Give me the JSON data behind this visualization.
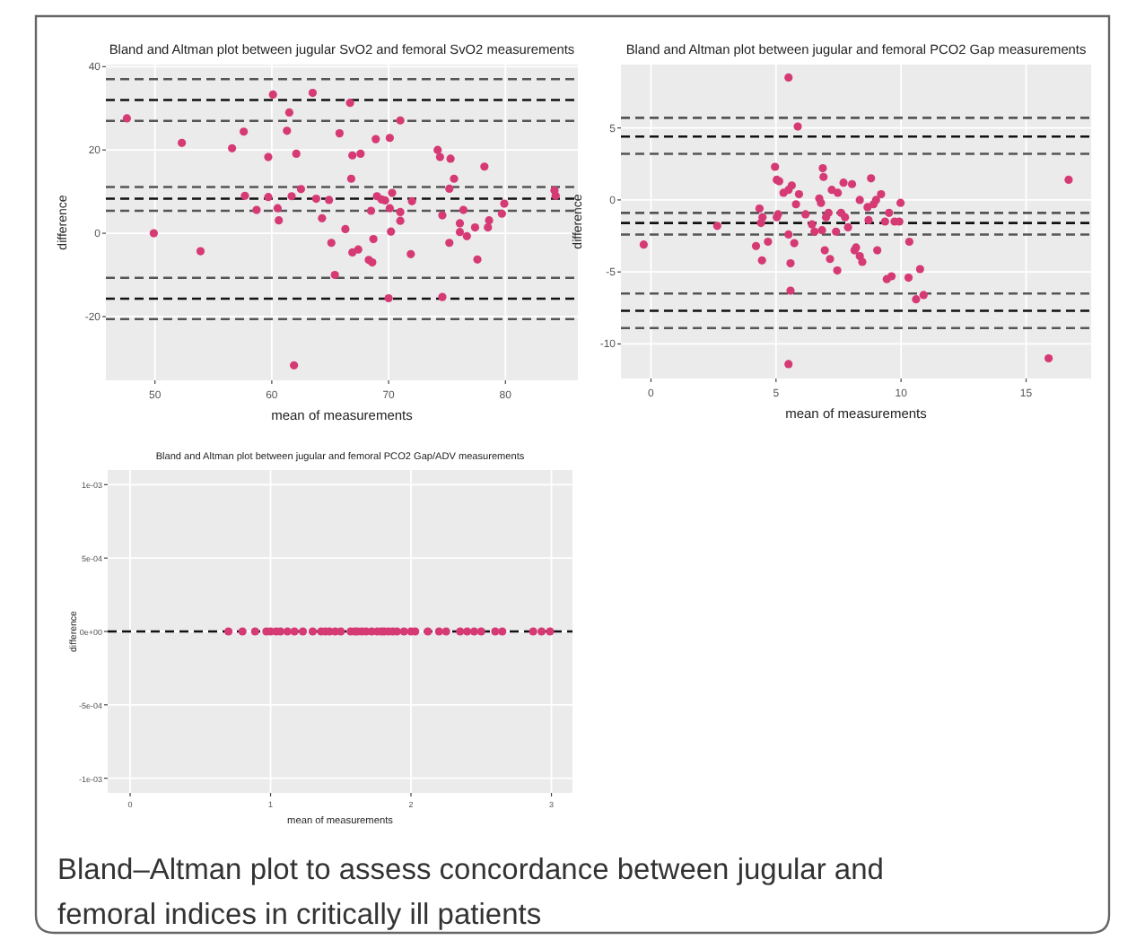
{
  "chart_data": [
    {
      "type": "scatter",
      "title": "Bland and Altman plot between jugular SvO2 and femoral SvO2 measurements",
      "xlabel": "mean of measurements",
      "ylabel": "difference",
      "color": "#d63a74",
      "marker": "circle",
      "grid": true,
      "xlim": [
        45.8,
        86.2
      ],
      "xticks": [
        50,
        60,
        70,
        80
      ],
      "ylim": [
        -35.3,
        40.5
      ],
      "yticks": [
        -20,
        0,
        20,
        40
      ],
      "x": [
        47.6,
        49.9,
        52.3,
        53.9,
        56.6,
        57.6,
        57.7,
        58.7,
        59.7,
        59.7,
        60.1,
        60.5,
        60.6,
        61.3,
        61.5,
        61.7,
        61.9,
        62.1,
        62.5,
        63.5,
        63.8,
        64.3,
        64.9,
        65.1,
        65.4,
        65.8,
        66.3,
        66.7,
        66.8,
        66.9,
        66.9,
        67.4,
        67.6,
        68.3,
        68.5,
        68.6,
        68.7,
        68.9,
        69,
        69.4,
        69.7,
        70,
        70.1,
        70.1,
        70.2,
        70.3,
        71,
        71,
        71,
        71.9,
        72,
        74.2,
        74.4,
        74.6,
        74.6,
        75.2,
        75.2,
        75.3,
        75.6,
        76.1,
        76.1,
        76.4,
        76.7,
        77.4,
        77.6,
        78.2,
        78.5,
        78.6,
        79.7,
        79.9,
        84.2,
        84.3
      ],
      "values": [
        27.6,
        0,
        21.7,
        -4.3,
        20.4,
        24.4,
        9,
        5.6,
        18.3,
        8.7,
        33.3,
        6,
        3.1,
        24.6,
        29,
        8.9,
        -31.7,
        19.1,
        10.6,
        33.7,
        8.3,
        3.6,
        8,
        -2.3,
        -10,
        24,
        1,
        31.3,
        13.1,
        18.7,
        -4.6,
        -3.9,
        19.1,
        -6.4,
        5.4,
        -7,
        -1.4,
        22.6,
        8.9,
        8.1,
        7.9,
        -15.6,
        22.9,
        6,
        0.4,
        9.7,
        5.1,
        27.1,
        3,
        -5,
        7.7,
        20,
        18.3,
        4.3,
        -15.3,
        -2.3,
        10.7,
        17.9,
        13.1,
        2.4,
        0.3,
        5.6,
        -0.7,
        1.4,
        -6.3,
        16,
        1.4,
        3.1,
        4.7,
        7.1,
        10.3,
        9
      ],
      "ref_lines": [
        {
          "axis": "y",
          "value": 37,
          "color": "#555555",
          "line_style": "dashed"
        },
        {
          "axis": "y",
          "value": 32,
          "color": "#111111",
          "line_style": "dashed"
        },
        {
          "axis": "y",
          "value": 27,
          "color": "#555555",
          "line_style": "dashed"
        },
        {
          "axis": "y",
          "value": 11.1,
          "color": "#555555",
          "line_style": "dashed"
        },
        {
          "axis": "y",
          "value": 8.3,
          "color": "#111111",
          "line_style": "dashed"
        },
        {
          "axis": "y",
          "value": 5.4,
          "color": "#555555",
          "line_style": "dashed"
        },
        {
          "axis": "y",
          "value": -10.7,
          "color": "#555555",
          "line_style": "dashed"
        },
        {
          "axis": "y",
          "value": -15.7,
          "color": "#111111",
          "line_style": "dashed"
        },
        {
          "axis": "y",
          "value": -20.6,
          "color": "#555555",
          "line_style": "dashed"
        }
      ]
    },
    {
      "type": "scatter",
      "title": "Bland and Altman plot between jugular and femoral PCO2 Gap measurements",
      "xlabel": "mean of measurements",
      "ylabel": "difference",
      "color": "#d63a74",
      "marker": "circle",
      "grid": true,
      "xlim": [
        -1.2,
        17.6
      ],
      "xticks": [
        0,
        5,
        10,
        15
      ],
      "ylim": [
        -12.4,
        9.4
      ],
      "yticks": [
        -10,
        -5,
        0,
        5
      ],
      "x": [
        -0.29,
        2.65,
        4.2,
        4.34,
        4.4,
        4.44,
        4.46,
        4.68,
        4.96,
        5.03,
        5.13,
        5.08,
        5.03,
        5.3,
        5.5,
        5.5,
        5.63,
        5.5,
        5.58,
        5.58,
        5.5,
        5.73,
        5.8,
        5.87,
        5.92,
        6.18,
        6.44,
        6.54,
        6.73,
        6.8,
        6.84,
        6.87,
        6.9,
        6.95,
        7,
        7.1,
        7.16,
        7.23,
        7.4,
        7.45,
        7.47,
        7.6,
        7.7,
        7.76,
        7.88,
        8.04,
        8.14,
        8.2,
        8.35,
        8.35,
        8.45,
        8.66,
        8.7,
        8.8,
        8.9,
        9,
        9.05,
        9.2,
        9.36,
        9.43,
        9.52,
        9.62,
        9.74,
        9.93,
        9.98,
        10.3,
        10.33,
        10.6,
        10.76,
        10.9,
        15.9,
        16.7
      ],
      "values": [
        -3.1,
        -1.8,
        -3.2,
        -0.6,
        -1.6,
        -4.2,
        -1.2,
        -2.9,
        2.3,
        1.4,
        1.3,
        -1,
        -1.2,
        0.5,
        8.5,
        0.7,
        1,
        -2.4,
        -4.4,
        -6.3,
        -11.4,
        -3,
        -0.3,
        5.1,
        0.4,
        -1,
        -1.7,
        -2.2,
        0.1,
        -0.2,
        -2.1,
        2.2,
        1.6,
        -3.5,
        -1.2,
        -0.9,
        -4.1,
        0.7,
        -2.2,
        -4.9,
        0.5,
        -0.9,
        1.2,
        -1.2,
        -1.9,
        1.1,
        -3.5,
        -3.3,
        0,
        -3.9,
        -4.3,
        -0.5,
        -1.4,
        1.5,
        -0.3,
        0,
        -3.5,
        0.4,
        -1.5,
        -5.5,
        -0.9,
        -5.3,
        -1.5,
        -1.5,
        -0.2,
        -5.4,
        -2.9,
        -6.9,
        -4.8,
        -6.6,
        -11,
        1.4
      ],
      "ref_lines": [
        {
          "axis": "y",
          "value": 5.7,
          "color": "#555555",
          "line_style": "dashed"
        },
        {
          "axis": "y",
          "value": 4.4,
          "color": "#111111",
          "line_style": "dashed"
        },
        {
          "axis": "y",
          "value": 3.2,
          "color": "#555555",
          "line_style": "dashed"
        },
        {
          "axis": "y",
          "value": -0.9,
          "color": "#555555",
          "line_style": "dashed"
        },
        {
          "axis": "y",
          "value": -1.6,
          "color": "#111111",
          "line_style": "dashed"
        },
        {
          "axis": "y",
          "value": -2.4,
          "color": "#555555",
          "line_style": "dashed"
        },
        {
          "axis": "y",
          "value": -6.5,
          "color": "#555555",
          "line_style": "dashed"
        },
        {
          "axis": "y",
          "value": -7.7,
          "color": "#111111",
          "line_style": "dashed"
        },
        {
          "axis": "y",
          "value": -8.9,
          "color": "#555555",
          "line_style": "dashed"
        }
      ]
    },
    {
      "type": "scatter",
      "title": "Bland and Altman plot between jugular and femoral PCO2 Gap/ADV measurements",
      "xlabel": "mean of measurements",
      "ylabel": "difference",
      "color": "#d63a74",
      "marker": "circle",
      "grid": true,
      "xlim": [
        -0.16,
        3.15
      ],
      "xticks": [
        0,
        1,
        2,
        3
      ],
      "ylim": [
        -0.0011,
        0.0011
      ],
      "yticks": [
        {
          "value": -0.001,
          "label": "-1e-03"
        },
        {
          "value": -0.0005,
          "label": "-5e-04"
        },
        {
          "value": 0,
          "label": "0e+00"
        },
        {
          "value": 0.0005,
          "label": "5e-04"
        },
        {
          "value": 0.001,
          "label": "1e-03"
        }
      ],
      "x": [
        0.7,
        0.8,
        0.89,
        0.97,
        1.0,
        1.04,
        1.07,
        1.12,
        1.17,
        1.23,
        1.3,
        1.36,
        1.39,
        1.42,
        1.46,
        1.5,
        1.57,
        1.6,
        1.62,
        1.65,
        1.68,
        1.72,
        1.76,
        1.79,
        1.81,
        1.84,
        1.87,
        1.9,
        1.95,
        2.0,
        2.03,
        2.12,
        2.2,
        2.25,
        2.35,
        2.4,
        2.45,
        2.5,
        2.6,
        2.65,
        2.87,
        2.93,
        2.99
      ],
      "values": [
        0,
        0,
        0,
        0,
        0,
        0,
        0,
        0,
        0,
        0,
        0,
        0,
        0,
        0,
        0,
        0,
        0,
        0,
        0,
        0,
        0,
        0,
        0,
        0,
        0,
        0,
        0,
        0,
        0,
        0,
        0,
        0,
        0,
        0,
        0,
        0,
        0,
        0,
        0,
        0,
        0,
        0,
        0
      ],
      "ref_lines": [
        {
          "axis": "y",
          "value": 0,
          "color": "#111111",
          "line_style": "dashed"
        }
      ]
    },
    {
      "type": "other",
      "annotations": [
        "Bland–Altman plot to assess concordance between jugular and femoral indices in critically ill patients"
      ]
    }
  ]
}
